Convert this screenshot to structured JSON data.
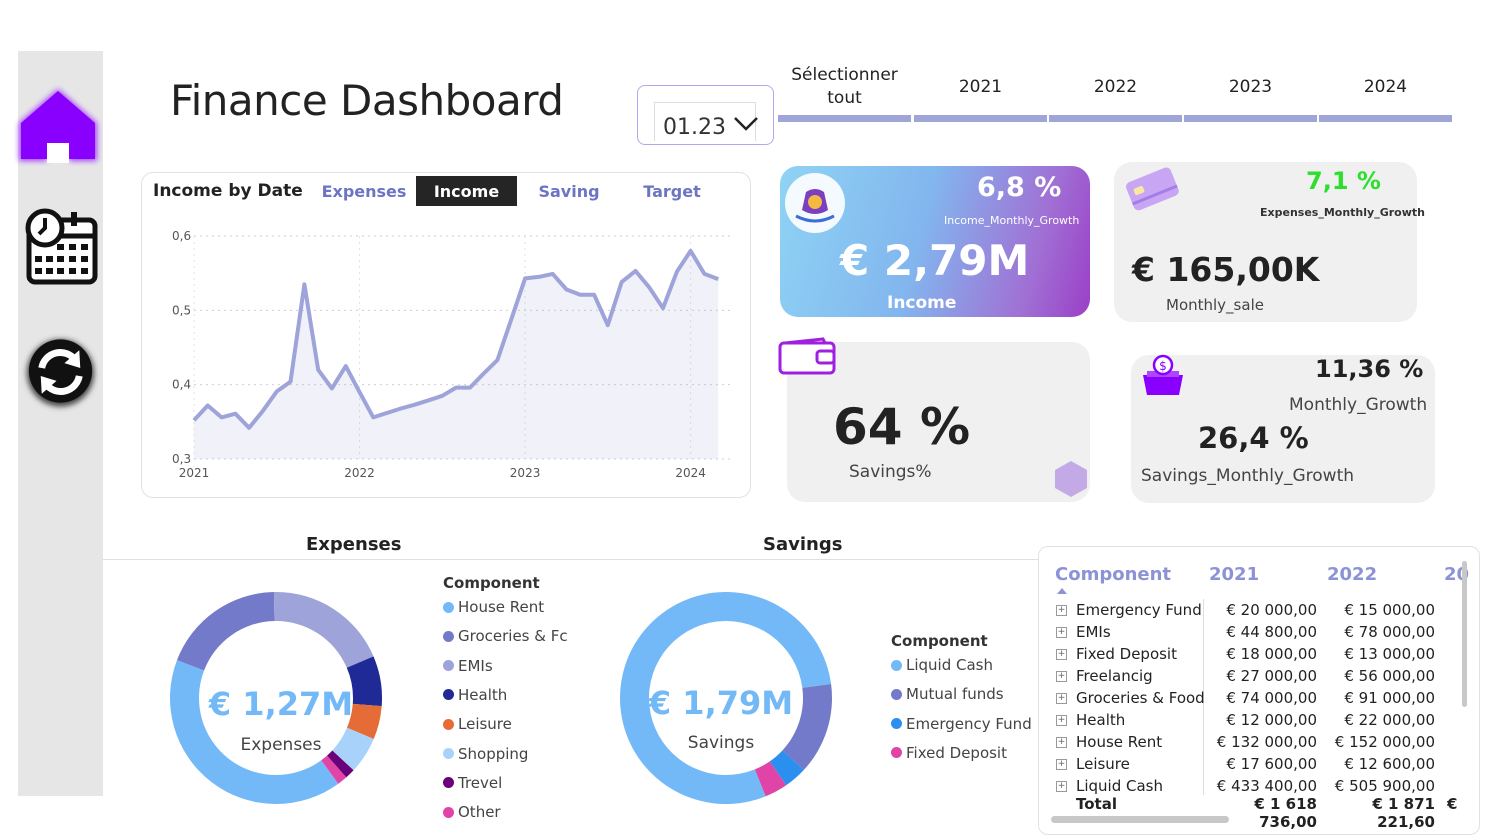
{
  "title": "Finance Dashboard",
  "date_slicer": {
    "value": "01.23"
  },
  "year_slicer": {
    "items": [
      "Sélectionner tout",
      "2021",
      "2022",
      "2023",
      "2024"
    ]
  },
  "income_chart": {
    "title": "Income by Date",
    "tabs": [
      "Expenses",
      "Income",
      "Saving",
      "Target"
    ],
    "active_tab": "Income"
  },
  "kpis": {
    "income": {
      "growth": "6,8 %",
      "growth_label": "Income_Monthly_Growth",
      "value": "€ 2,79M",
      "label": "Income"
    },
    "expenses": {
      "growth": "7,1 %",
      "growth_label": "Expenses_Monthly_Growth",
      "value": "€ 165,00K",
      "label": "Monthly_sale"
    },
    "savings": {
      "value": "64 %",
      "label": "Savings%"
    },
    "monthly_growth": {
      "value": "11,36 %",
      "label": "Monthly_Growth",
      "value2": "26,4 %",
      "label2": "Savings_Monthly_Growth"
    }
  },
  "expenses_section": {
    "title": "Expenses",
    "center_value": "€ 1,27M",
    "center_label": "Expenses",
    "legend_title": "Component",
    "legend": [
      {
        "label": "House Rent",
        "color": "#74b9f7"
      },
      {
        "label": "Groceries & Fc",
        "color": "#737ac9"
      },
      {
        "label": "EMIs",
        "color": "#9ea3d9"
      },
      {
        "label": "Health",
        "color": "#1f2a96"
      },
      {
        "label": "Leisure",
        "color": "#e66c37"
      },
      {
        "label": "Shopping",
        "color": "#a9d2fb"
      },
      {
        "label": "Trevel",
        "color": "#6b007b"
      },
      {
        "label": "Other",
        "color": "#e044a7"
      }
    ]
  },
  "savings_section": {
    "title": "Savings",
    "center_value": "€ 1,79M",
    "center_label": "Savings",
    "legend_title": "Component",
    "legend": [
      {
        "label": "Liquid Cash",
        "color": "#74b9f7"
      },
      {
        "label": "Mutual funds",
        "color": "#737ac9"
      },
      {
        "label": "Emergency Fund",
        "color": "#2b8ff0"
      },
      {
        "label": "Fixed Deposit",
        "color": "#e044a7"
      }
    ]
  },
  "matrix": {
    "headers": [
      "Component",
      "2021",
      "2022",
      "20"
    ],
    "rows": [
      {
        "name": "Emergency Fund",
        "v2021": "€ 20 000,00",
        "v2022": "€ 15 000,00"
      },
      {
        "name": "EMIs",
        "v2021": "€ 44 800,00",
        "v2022": "€ 78 000,00"
      },
      {
        "name": "Fixed Deposit",
        "v2021": "€ 18 000,00",
        "v2022": "€ 13 000,00"
      },
      {
        "name": "Freelancig",
        "v2021": "€ 27 000,00",
        "v2022": "€ 56 000,00"
      },
      {
        "name": "Groceries & Food",
        "v2021": "€ 74 000,00",
        "v2022": "€ 91 000,00"
      },
      {
        "name": "Health",
        "v2021": "€ 12 000,00",
        "v2022": "€ 22 000,00"
      },
      {
        "name": "House Rent",
        "v2021": "€ 132 000,00",
        "v2022": "€ 152 000,00"
      },
      {
        "name": "Leisure",
        "v2021": "€ 17 600,00",
        "v2022": "€ 12 600,00"
      },
      {
        "name": "Liquid Cash",
        "v2021": "€ 433 400,00",
        "v2022": "€ 505 900,00"
      }
    ],
    "total": {
      "name": "Total",
      "v2021": "€ 1 618 736,00",
      "v2022": "€ 1 871 221,60",
      "v2023": "€"
    }
  },
  "chart_data": [
    {
      "type": "area",
      "title": "Income by Date",
      "x_tick_labels": [
        "2021",
        "2022",
        "2023",
        "2024"
      ],
      "y_tick_labels": [
        "0,3",
        "0,4",
        "0,5",
        "0,6"
      ],
      "ylim": [
        0.3,
        0.6
      ],
      "xlim": [
        2021.0,
        2024.25
      ],
      "grid": true,
      "series": [
        {
          "color": "#9ea3d9",
          "x": [
            2021.0,
            2021.083,
            2021.167,
            2021.25,
            2021.333,
            2021.417,
            2021.5,
            2021.583,
            2021.667,
            2021.75,
            2021.833,
            2021.917,
            2022.0,
            2022.083,
            2022.167,
            2022.25,
            2022.333,
            2022.417,
            2022.5,
            2022.583,
            2022.667,
            2022.75,
            2022.833,
            2022.917,
            2023.0,
            2023.083,
            2023.167,
            2023.25,
            2023.333,
            2023.417,
            2023.5,
            2023.583,
            2023.667,
            2023.75,
            2023.833,
            2023.917,
            2024.0,
            2024.083,
            2024.167
          ],
          "y": [
            0.352,
            0.372,
            0.356,
            0.361,
            0.342,
            0.365,
            0.391,
            0.404,
            0.535,
            0.42,
            0.395,
            0.425,
            0.39,
            0.356,
            0.362,
            0.368,
            0.373,
            0.379,
            0.385,
            0.396,
            0.396,
            0.415,
            0.433,
            0.488,
            0.543,
            0.545,
            0.549,
            0.528,
            0.521,
            0.521,
            0.48,
            0.538,
            0.553,
            0.531,
            0.503,
            0.552,
            0.58,
            0.549,
            0.542
          ]
        }
      ]
    },
    {
      "type": "pie",
      "title": "Expenses",
      "labels": [
        "House Rent",
        "Groceries & Fc",
        "EMIs",
        "Health",
        "Leisure",
        "Shopping",
        "Trevel",
        "Other"
      ],
      "values": [
        40,
        18.5,
        18.5,
        7.5,
        5,
        5.5,
        1.5,
        1.5
      ],
      "donut": true
    },
    {
      "type": "pie",
      "title": "Savings",
      "labels": [
        "Liquid Cash",
        "Mutual funds",
        "Emergency Fund",
        "Fixed Deposit"
      ],
      "values": [
        79,
        14,
        3.5,
        3.5
      ],
      "donut": true
    }
  ]
}
